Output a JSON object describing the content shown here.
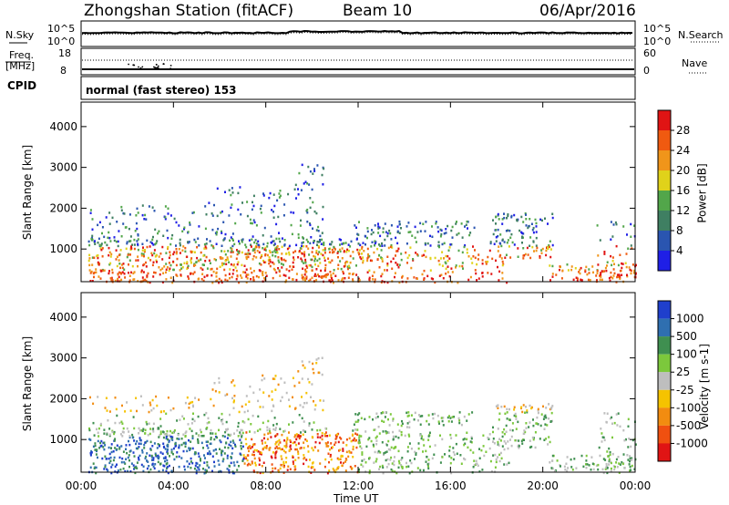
{
  "header": {
    "station": "Zhongshan Station (fitACF)",
    "beam": "Beam 10",
    "date": "06/Apr/2016"
  },
  "noise_panel": {
    "left_label": "N.Sky",
    "right_label": "N.Search",
    "left_ticks": [
      "10^5",
      "10^0"
    ],
    "right_ticks": [
      "10^5",
      "10^0"
    ]
  },
  "freq_panel": {
    "left_label": "Freq.",
    "left_unit": "[MHz]",
    "right_label": "Nave",
    "left_ticks": [
      "18",
      "8"
    ],
    "right_ticks": [
      "60",
      "0"
    ]
  },
  "cpid": {
    "label": "CPID",
    "text": "normal (fast stereo) 153"
  },
  "chart_data": [
    {
      "type": "heatmap",
      "name": "power",
      "ylabel": "Slant Range [km]",
      "yticks": [
        "1000",
        "2000",
        "3000",
        "4000"
      ],
      "ylim": [
        200,
        4600
      ],
      "colorbar": {
        "label": "Power [dB]",
        "ticks": [
          "4",
          "8",
          "12",
          "16",
          "20",
          "24",
          "28"
        ],
        "colors": [
          "#1f1fe6",
          "#2a55b0",
          "#3f7f62",
          "#52a64a",
          "#e0d21a",
          "#f0951a",
          "#f05a10",
          "#e01414"
        ]
      },
      "xlim_hours": [
        0,
        24
      ]
    },
    {
      "type": "heatmap",
      "name": "velocity",
      "ylabel": "Slant Range [km]",
      "yticks": [
        "1000",
        "2000",
        "3000",
        "4000"
      ],
      "ylim": [
        200,
        4600
      ],
      "colorbar": {
        "label": "Velocity [m s-1]",
        "ticks": [
          "1000",
          "500",
          "100",
          "25",
          "-25",
          "-100",
          "-500",
          "-1000"
        ],
        "colors": [
          "#1f3fcc",
          "#2f6fb0",
          "#3f8f50",
          "#7cc83c",
          "#bebebe",
          "#f5c300",
          "#f28c10",
          "#f05010",
          "#e01414"
        ]
      },
      "xlim_hours": [
        0,
        24
      ]
    }
  ],
  "time_axis": {
    "ticks": [
      "00:00",
      "04:00",
      "08:00",
      "12:00",
      "16:00",
      "20:00",
      "00:00"
    ],
    "label": "Time UT"
  }
}
